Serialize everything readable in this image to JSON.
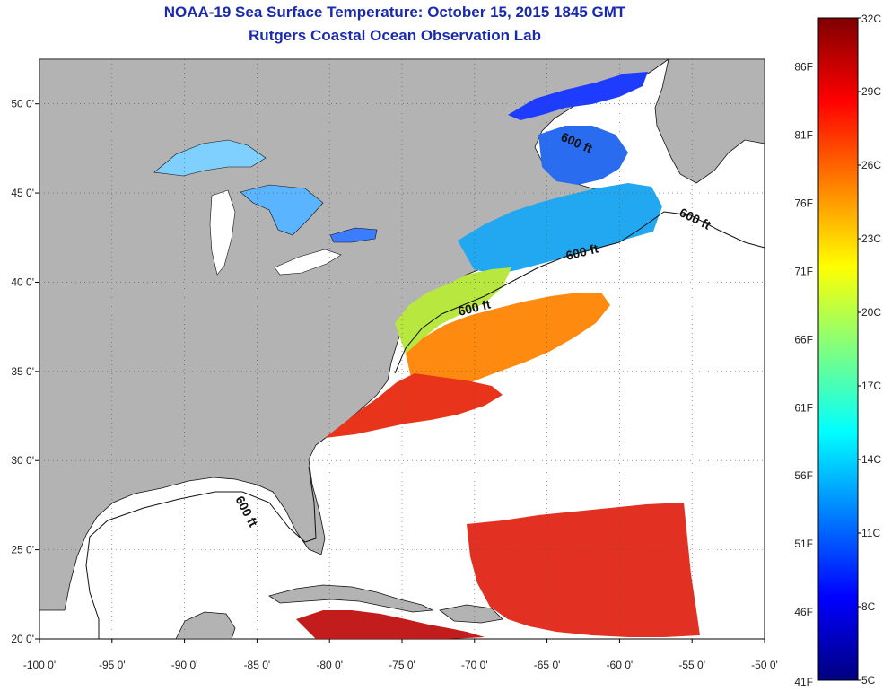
{
  "title": "NOAA-19 Sea Surface Temperature:  October 15, 2015 1845 GMT",
  "subtitle": "Rutgers Coastal Ocean Observation Lab",
  "map": {
    "lon_range": [
      -100,
      -50
    ],
    "lat_range": [
      20,
      52.5
    ],
    "lon_ticks": [
      {
        "v": -100,
        "label": "-100 0'"
      },
      {
        "v": -95,
        "label": "-95 0'"
      },
      {
        "v": -90,
        "label": "-90 0'"
      },
      {
        "v": -85,
        "label": "-85 0'"
      },
      {
        "v": -80,
        "label": "-80 0'"
      },
      {
        "v": -75,
        "label": "-75 0'"
      },
      {
        "v": -70,
        "label": "-70 0'"
      },
      {
        "v": -65,
        "label": "-65 0'"
      },
      {
        "v": -60,
        "label": "-60 0'"
      },
      {
        "v": -55,
        "label": "-55 0'"
      },
      {
        "v": -50,
        "label": "-50 0'"
      }
    ],
    "lat_ticks": [
      {
        "v": 20,
        "label": "20 0'"
      },
      {
        "v": 25,
        "label": "25 0'"
      },
      {
        "v": 30,
        "label": "30 0'"
      },
      {
        "v": 35,
        "label": "35 0'"
      },
      {
        "v": 40,
        "label": "40 0'"
      },
      {
        "v": 45,
        "label": "45 0'"
      },
      {
        "v": 50,
        "label": "50 0'"
      }
    ],
    "grid": true,
    "contour_label": "600 ft",
    "colors": {
      "land": "#b3b3b3",
      "ocean_nodata": "#ffffff",
      "coast": "#111111"
    }
  },
  "colorbar": {
    "range_c": [
      5,
      32
    ],
    "celsius_ticks": [
      "32C",
      "29C",
      "26C",
      "23C",
      "20C",
      "17C",
      "14C",
      "11C",
      "8C",
      "5C"
    ],
    "fahrenheit_ticks": [
      "86F",
      "81F",
      "76F",
      "71F",
      "66F",
      "61F",
      "56F",
      "51F",
      "46F",
      "41F"
    ],
    "colors": [
      "#00007f",
      "#0000ff",
      "#007fff",
      "#00ffff",
      "#7fff7f",
      "#ffff00",
      "#ff7f00",
      "#ff0000",
      "#7f0000"
    ]
  }
}
